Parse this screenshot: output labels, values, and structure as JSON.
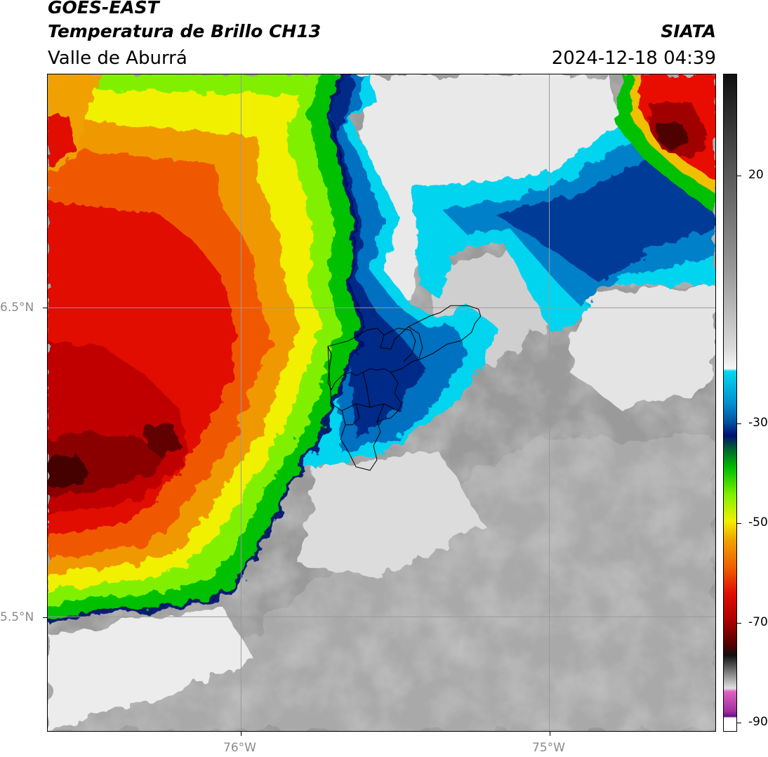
{
  "header": {
    "satellite": "GOES-EAST",
    "product": "Temperatura de Brillo CH13",
    "region": "Valle de Aburrá",
    "org": "SIATA",
    "datetime": "2024-12-18 04:39"
  },
  "axes": {
    "lat_labels": [
      "6.5°N",
      "5.5°N"
    ],
    "lon_labels": [
      "76°W",
      "75°W"
    ]
  },
  "colorbar": {
    "labels": [
      "20",
      "-30",
      "-50",
      "-70",
      "-90"
    ],
    "stops": [
      "#1a1a1a",
      "#5a5a5a",
      "#a0a0a0",
      "#d8d8d8",
      "#f4f4f4",
      "#00d8f0",
      "#0090d0",
      "#0050a0",
      "#001070",
      "#006020",
      "#00c000",
      "#80f000",
      "#f0f000",
      "#f0a000",
      "#f06000",
      "#e01000",
      "#b00000",
      "#600000",
      "#101010",
      "#7a7a7a",
      "#d0d0d0",
      "#e060c0",
      "#a030a0",
      "#6a1080",
      "#ffffff"
    ]
  },
  "colors": {
    "cloud_warm_gray": "#8c8c8c",
    "cloud_light": "#e8e8e8",
    "cyan": "#00d0ee",
    "blue": "#0060b8",
    "navy": "#001a78",
    "green": "#30d000",
    "yellow": "#f0f000",
    "orange": "#f09000",
    "red": "#e01000",
    "dark_red": "#7a0000"
  }
}
